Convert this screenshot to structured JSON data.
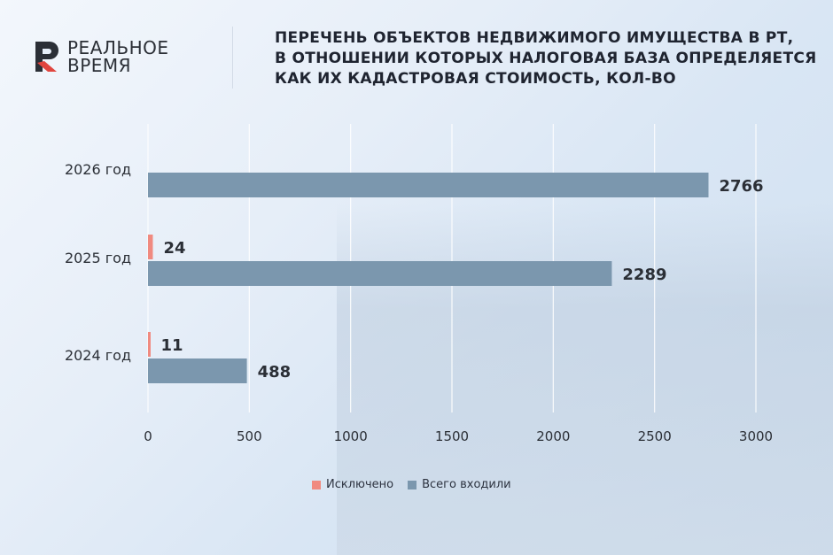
{
  "brand": {
    "line1": "РЕАЛЬНОЕ",
    "line2": "ВРЕМЯ"
  },
  "title_lines": [
    "ПЕРЕЧЕНЬ ОБЪЕКТОВ НЕДВИЖИМОГО ИМУЩЕСТВА В РТ,",
    "В ОТНОШЕНИИ КОТОРЫХ НАЛОГОВАЯ БАЗА ОПРЕДЕЛЯЕТСЯ",
    "КАК ИХ КАДАСТРОВАЯ СТОИМОСТЬ, КОЛ-ВО"
  ],
  "colors": {
    "excluded": "#f08a80",
    "total": "#7b97ae",
    "logo_red": "#e1453f",
    "text": "#2b2f36"
  },
  "chart_data": {
    "type": "bar",
    "orientation": "horizontal",
    "title": "ПЕРЕЧЕНЬ ОБЪЕКТОВ НЕДВИЖИМОГО ИМУЩЕСТВА В РТ, В ОТНОШЕНИИ КОТОРЫХ НАЛОГОВАЯ БАЗА ОПРЕДЕЛЯЕТСЯ КАК ИХ КАДАСТРОВАЯ СТОИМОСТЬ, КОЛ-ВО",
    "categories": [
      "2026 год",
      "2025 год",
      "2024 год"
    ],
    "series": [
      {
        "name": "Исключено",
        "values": [
          null,
          24,
          11
        ]
      },
      {
        "name": "Всего входили",
        "values": [
          2766,
          2289,
          488
        ]
      }
    ],
    "xlim": [
      0,
      3000
    ],
    "xticks": [
      0,
      500,
      1000,
      1500,
      2000,
      2500,
      3000
    ],
    "grid": true,
    "legend_position": "bottom"
  }
}
